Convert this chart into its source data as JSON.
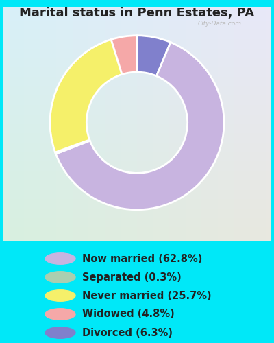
{
  "title": "Marital status in Penn Estates, PA",
  "slices": [
    62.8,
    0.3,
    25.7,
    4.8,
    6.3
  ],
  "labels": [
    "Now married (62.8%)",
    "Separated (0.3%)",
    "Never married (25.7%)",
    "Widowed (4.8%)",
    "Divorced (6.3%)"
  ],
  "colors": [
    "#c8b4e0",
    "#aacfb0",
    "#f5f06a",
    "#f5a8a8",
    "#8080cc"
  ],
  "legend_dot_colors": [
    "#c8b4e0",
    "#aacfb0",
    "#f5f06a",
    "#f5a8a8",
    "#8080cc"
  ],
  "bg_cyan": "#00e8f8",
  "bg_chart_top_left": "#d8f0e0",
  "bg_chart_bottom_right": "#e8e8f8",
  "title_fontsize": 13,
  "legend_fontsize": 10.5,
  "watermark": "City-Data.com",
  "title_color": "#222222",
  "legend_text_color": "#222222",
  "wedge_order": [
    4,
    0,
    1,
    2,
    3
  ],
  "start_angle": 90,
  "donut_width": 0.42
}
